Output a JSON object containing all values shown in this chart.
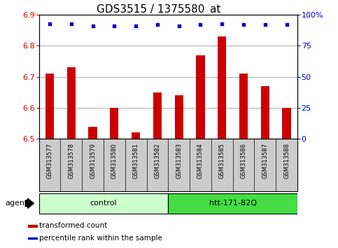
{
  "title": "GDS3515 / 1375580_at",
  "samples": [
    "GSM313577",
    "GSM313578",
    "GSM313579",
    "GSM313580",
    "GSM313581",
    "GSM313582",
    "GSM313583",
    "GSM313584",
    "GSM313585",
    "GSM313586",
    "GSM313587",
    "GSM313588"
  ],
  "bar_values": [
    6.71,
    6.73,
    6.54,
    6.6,
    6.52,
    6.65,
    6.64,
    6.77,
    6.83,
    6.71,
    6.67,
    6.6
  ],
  "percentile_values": [
    93,
    93,
    91,
    91,
    91,
    92,
    91,
    92,
    93,
    92,
    92,
    92
  ],
  "bar_bottom": 6.5,
  "ylim_left": [
    6.5,
    6.9
  ],
  "ylim_right": [
    0,
    100
  ],
  "yticks_left": [
    6.5,
    6.6,
    6.7,
    6.8,
    6.9
  ],
  "yticks_right": [
    0,
    25,
    50,
    75,
    100
  ],
  "bar_color": "#cc0000",
  "dot_color": "#0000cc",
  "title_fontsize": 11,
  "tick_fontsize": 8,
  "sample_fontsize": 6,
  "group_fontsize": 8,
  "legend_fontsize": 7.5,
  "groups": [
    {
      "label": "control",
      "start": 0,
      "end": 6,
      "color": "#ccffcc",
      "edgecolor": "#000000"
    },
    {
      "label": "htt-171-82Q",
      "start": 6,
      "end": 12,
      "color": "#44dd44",
      "edgecolor": "#000000"
    }
  ],
  "agent_label": "agent",
  "sample_bg": "#cccccc",
  "legend_items": [
    {
      "color": "#cc0000",
      "label": "transformed count"
    },
    {
      "color": "#0000cc",
      "label": "percentile rank within the sample"
    }
  ],
  "xlim": [
    -0.5,
    11.5
  ],
  "bar_width": 0.4
}
